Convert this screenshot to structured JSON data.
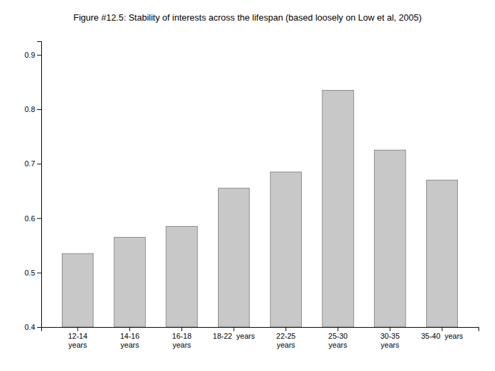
{
  "chart_data": {
    "type": "bar",
    "title": "Figure #12.5: Stability of interests across the lifespan (based loosely on Low et al, 2005)",
    "categories": [
      "12-14\nyears",
      "14-16\nyears",
      "16-18\nyears",
      "18-22  years",
      "22-25\nyears",
      "25-30\nyears",
      "30-35\nyears",
      "35-40  years"
    ],
    "values": [
      0.535,
      0.565,
      0.585,
      0.655,
      0.685,
      0.835,
      0.725,
      0.67
    ],
    "color": "#c8c8c8",
    "ylim": [
      0.4,
      0.925
    ],
    "yticks": [
      0.4,
      0.5,
      0.6,
      0.7,
      0.8,
      0.9
    ],
    "grid": false
  }
}
